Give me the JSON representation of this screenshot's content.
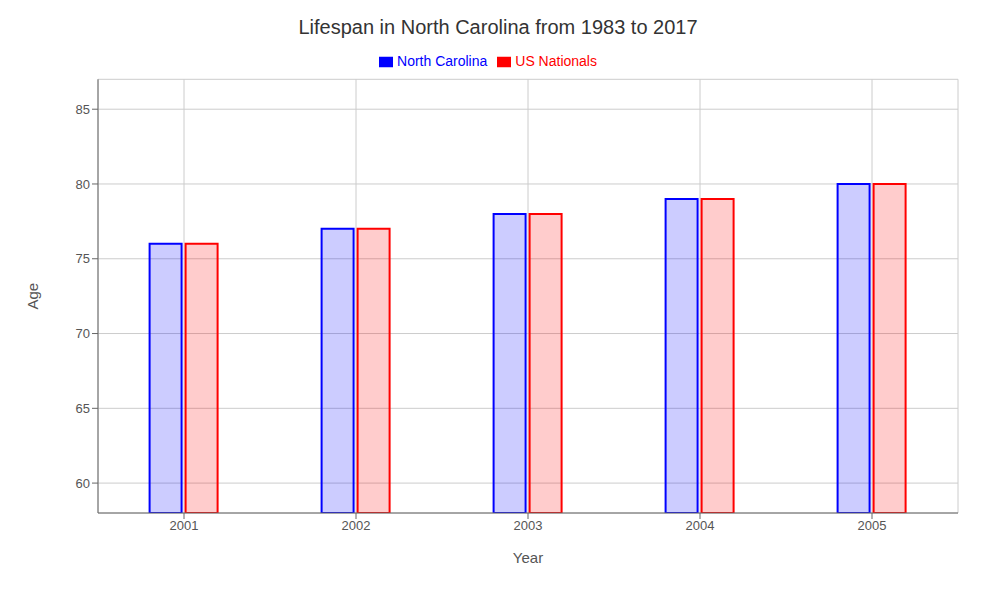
{
  "chart_data": {
    "type": "bar",
    "title": "Lifespan in North Carolina from 1983 to 2017",
    "x_label": "Year",
    "y_label": "Age",
    "categories": [
      "2001",
      "2002",
      "2003",
      "2004",
      "2005"
    ],
    "series": [
      {
        "name": "North Carolina",
        "color": "#0000ff",
        "values": [
          76,
          77,
          78,
          79,
          80
        ]
      },
      {
        "name": "US Nationals",
        "color": "#ff0000",
        "values": [
          76,
          77,
          78,
          79,
          80
        ]
      }
    ],
    "ylim": [
      58,
      87
    ],
    "yticks": [
      60,
      65,
      70,
      75,
      80,
      85
    ],
    "grid": true,
    "legend": "top"
  }
}
